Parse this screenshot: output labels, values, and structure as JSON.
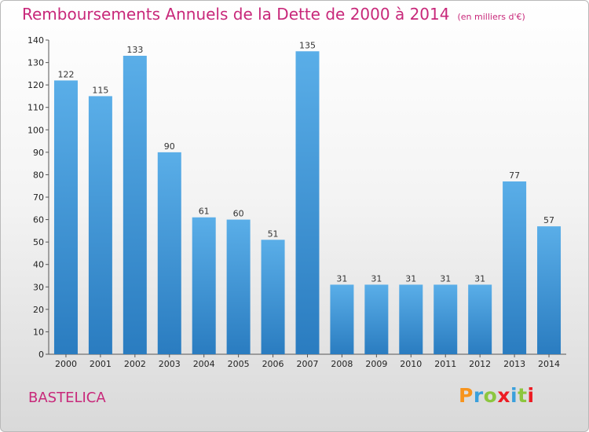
{
  "title": "Remboursements Annuels de la Dette de 2000 à 2014",
  "unit_note": "(en milliers d'€)",
  "town": "BASTELICA",
  "brand": {
    "letters": [
      "P",
      "r",
      "o",
      "x",
      "i",
      "t",
      "i"
    ],
    "colors": [
      "#f7941d",
      "#3aa0dc",
      "#8cc63f",
      "#ed1c24",
      "#3aa0dc",
      "#8cc63f",
      "#ed1c24"
    ]
  },
  "colors": {
    "title": "#c8287a",
    "bar_light": "#5aaee8",
    "bar_dark": "#2a7cc0"
  },
  "chart_data": {
    "type": "bar",
    "categories": [
      "2000",
      "2001",
      "2002",
      "2003",
      "2004",
      "2005",
      "2006",
      "2007",
      "2008",
      "2009",
      "2010",
      "2011",
      "2012",
      "2013",
      "2014"
    ],
    "values": [
      122,
      115,
      133,
      90,
      61,
      60,
      51,
      135,
      31,
      31,
      31,
      31,
      31,
      77,
      57
    ],
    "data_labels": [
      "122",
      "115",
      "133",
      "90",
      "61",
      "60",
      "51",
      "135",
      "31",
      "31",
      "31",
      "31",
      "31",
      "77",
      "57"
    ],
    "ylim": [
      0,
      140
    ],
    "yticks": [
      0,
      10,
      20,
      30,
      40,
      50,
      60,
      70,
      80,
      90,
      100,
      110,
      120,
      130,
      140
    ],
    "grid": false,
    "legend": "none"
  }
}
